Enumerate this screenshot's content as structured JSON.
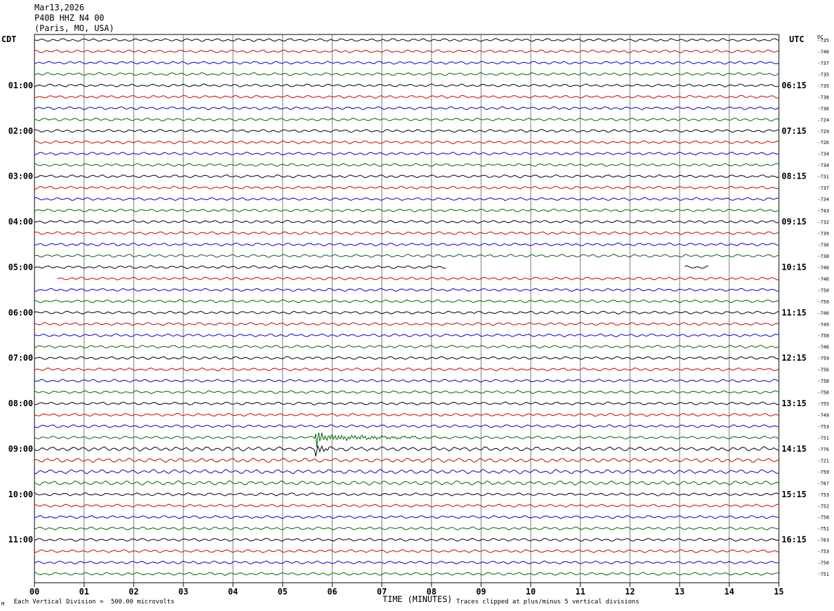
{
  "header": {
    "date": "Mar13,2026",
    "station": "P40B HHZ N4 00",
    "location": "(Paris, MO, USA)"
  },
  "axes": {
    "left_label": "CDT",
    "right_label": "UTC",
    "dc_label": "DC",
    "x_title": "TIME (MINUTES)"
  },
  "footer": {
    "scale_note": "Each Vertical Division =  500.00 microvolts",
    "clip_note": "Traces clipped at plus/minus 5 vertical divisions",
    "corner_mark": "M"
  },
  "chart_data": {
    "type": "line",
    "title": "Mar13,2026 P40B HHZ N4 00 (Paris, MO, USA)",
    "xlabel": "TIME (MINUTES)",
    "xlim": [
      0,
      15
    ],
    "x_ticks": [
      "00",
      "01",
      "02",
      "03",
      "04",
      "05",
      "06",
      "07",
      "08",
      "09",
      "10",
      "11",
      "12",
      "13",
      "14",
      "15"
    ],
    "grid": true,
    "trace_colors": [
      "#000000",
      "#cc0000",
      "#0000cc",
      "#006600"
    ],
    "left_time_labels": [
      "01:00",
      "02:00",
      "03:00",
      "04:00",
      "05:00",
      "06:00",
      "07:00",
      "08:00",
      "09:00",
      "10:00",
      "11:00"
    ],
    "right_time_labels": [
      "06:15",
      "07:15",
      "08:15",
      "09:15",
      "10:15",
      "11:15",
      "12:15",
      "13:15",
      "14:15",
      "15:15",
      "16:15"
    ],
    "dc_offsets": [
      -735,
      -740,
      -737,
      -735,
      -735,
      -738,
      -736,
      -724,
      -729,
      -726,
      -734,
      -734,
      -731,
      -737,
      -734,
      -743,
      -732,
      -739,
      -736,
      -738,
      -740,
      -746,
      -750,
      -750,
      -746,
      -749,
      -758,
      -746,
      -759,
      -756,
      -758,
      -758,
      -755,
      -749,
      -753,
      -751,
      -776,
      -721,
      -759,
      -767,
      -753,
      -752,
      -758,
      -751,
      -763,
      -753,
      -750,
      -751
    ],
    "gaps": [
      {
        "trace": 20,
        "from": 8.3,
        "to": 13.1
      },
      {
        "trace": 20,
        "from": 13.6,
        "to": 15.0
      },
      {
        "trace": 21,
        "from": 0.0,
        "to": 0.45
      }
    ],
    "events": [
      {
        "trace": 35,
        "minute": 5.65,
        "description": "large arrival, coda to ~8.5 min"
      }
    ]
  }
}
